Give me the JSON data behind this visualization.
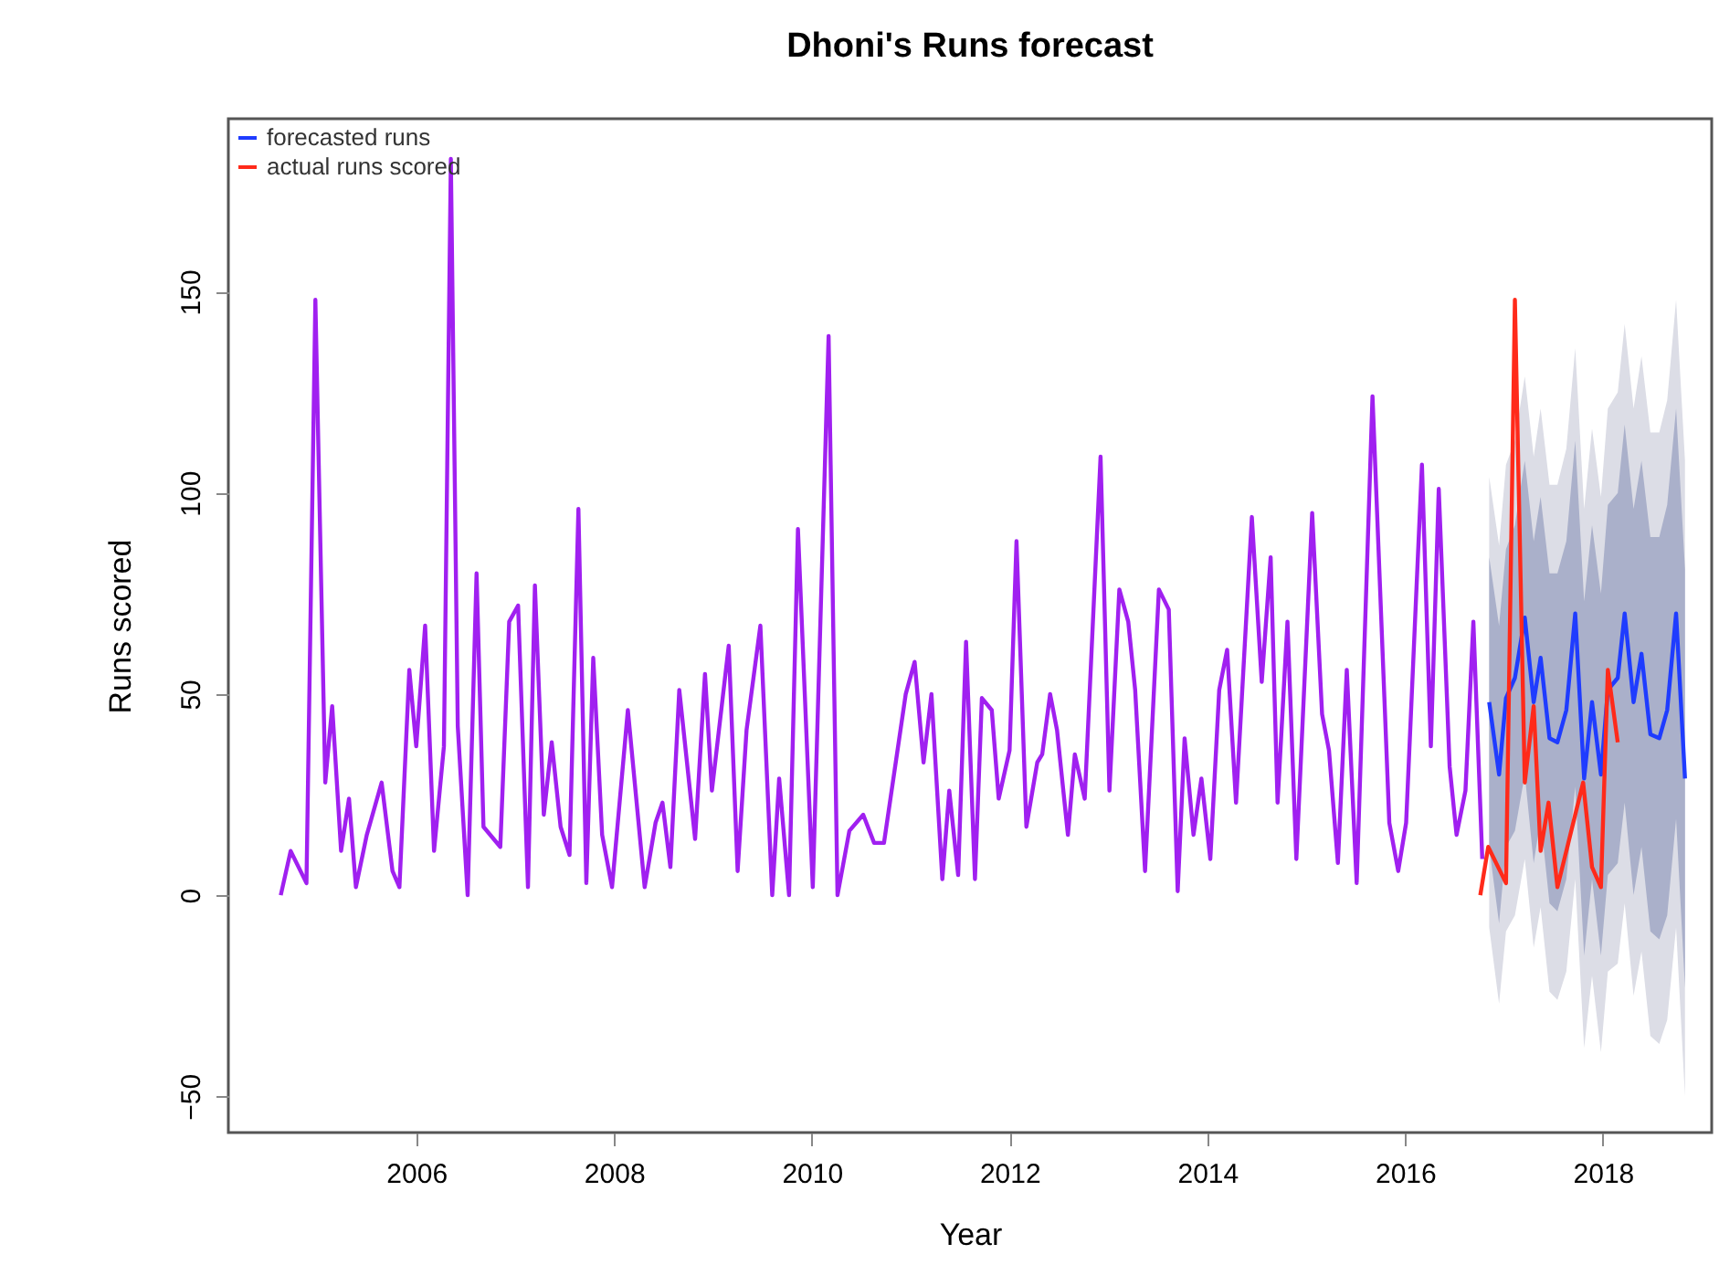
{
  "chart_data": {
    "type": "line",
    "title": "Dhoni's Runs forecast",
    "xlabel": "Year",
    "ylabel": "Runs scored",
    "xlim": [
      2004.1,
      2019.1
    ],
    "xticks": [
      2006,
      2008,
      2010,
      2012,
      2014,
      2016,
      2018
    ],
    "ylim": [
      -59,
      193
    ],
    "yticks": [
      -50,
      0,
      50,
      100,
      150
    ],
    "legend": "top left",
    "series": [
      {
        "color": "#dcdde6",
        "x": [
          2016.85,
          2016.95,
          2017.02,
          2017.11,
          2017.21,
          2017.3,
          2017.37,
          2017.46,
          2017.54,
          2017.63,
          2017.72,
          2017.81,
          2017.89,
          2017.98,
          2018.05,
          2018.15,
          2018.22,
          2018.31,
          2018.39,
          2018.48,
          2018.57,
          2018.65,
          2018.74,
          2018.83
        ],
        "values": [
          null,
          null,
          null,
          null,
          null,
          null,
          null,
          null,
          null,
          null,
          null,
          null,
          null,
          null,
          null,
          null,
          null,
          null,
          null,
          null,
          null,
          null,
          null,
          null
        ],
        "lower": [
          -8,
          -27,
          -9,
          -5,
          9,
          -13,
          -3,
          -24,
          -26,
          -19,
          4,
          -38,
          -20,
          -39,
          -19,
          -17,
          -2,
          -25,
          -14,
          -35,
          -37,
          -31,
          -8,
          -50
        ],
        "upper": [
          104,
          87,
          107,
          113,
          129,
          109,
          121,
          102,
          102,
          111,
          136,
          96,
          116,
          99,
          121,
          125,
          142,
          121,
          134,
          115,
          115,
          123,
          148,
          108
        ]
      },
      {
        "color": "#aab0ca",
        "x": [
          2016.85,
          2016.95,
          2017.02,
          2017.11,
          2017.21,
          2017.3,
          2017.37,
          2017.46,
          2017.54,
          2017.63,
          2017.72,
          2017.81,
          2017.89,
          2017.98,
          2018.05,
          2018.15,
          2018.22,
          2018.31,
          2018.39,
          2018.48,
          2018.57,
          2018.65,
          2018.74,
          2018.83
        ],
        "values": [
          null,
          null,
          null,
          null,
          null,
          null,
          null,
          null,
          null,
          null,
          null,
          null,
          null,
          null,
          null,
          null,
          null,
          null,
          null,
          null,
          null,
          null,
          null,
          null
        ],
        "lower": [
          12,
          -7,
          12,
          16,
          30,
          8,
          19,
          -2,
          -4,
          4,
          27,
          -15,
          4,
          -15,
          5,
          8,
          23,
          0,
          12,
          -9,
          -11,
          -5,
          19,
          -23
        ],
        "upper": [
          84,
          67,
          86,
          92,
          108,
          88,
          99,
          80,
          80,
          88,
          113,
          73,
          92,
          75,
          97,
          100,
          117,
          96,
          108,
          89,
          89,
          97,
          121,
          81
        ]
      },
      {
        "color": "#a020f0",
        "x": [
          2004.63,
          2004.73,
          2004.89,
          2004.98,
          2005.08,
          2005.15,
          2005.24,
          2005.32,
          2005.39,
          2005.5,
          2005.65,
          2005.76,
          2005.83,
          2005.93,
          2006.0,
          2006.09,
          2006.18,
          2006.28,
          2006.35,
          2006.42,
          2006.52,
          2006.61,
          2006.68,
          2006.85,
          2006.94,
          2007.03,
          2007.13,
          2007.2,
          2007.29,
          2007.37,
          2007.46,
          2007.55,
          2007.64,
          2007.72,
          2007.79,
          2007.88,
          2007.98,
          2008.14,
          2008.31,
          2008.42,
          2008.49,
          2008.57,
          2008.66,
          2008.82,
          2008.92,
          2008.99,
          2009.16,
          2009.25,
          2009.34,
          2009.48,
          2009.6,
          2009.67,
          2009.77,
          2009.86,
          2010.01,
          2010.17,
          2010.26,
          2010.38,
          2010.52,
          2010.63,
          2010.73,
          2010.95,
          2011.04,
          2011.13,
          2011.21,
          2011.32,
          2011.39,
          2011.48,
          2011.56,
          2011.65,
          2011.72,
          2011.82,
          2011.89,
          2012.0,
          2012.07,
          2012.17,
          2012.28,
          2012.33,
          2012.41,
          2012.48,
          2012.59,
          2012.66,
          2012.76,
          2012.92,
          2013.01,
          2013.11,
          2013.2,
          2013.27,
          2013.37,
          2013.51,
          2013.61,
          2013.7,
          2013.77,
          2013.86,
          2013.94,
          2014.03,
          2014.12,
          2014.2,
          2014.29,
          2014.45,
          2014.55,
          2014.64,
          2014.71,
          2014.81,
          2014.9,
          2015.06,
          2015.16,
          2015.23,
          2015.32,
          2015.41,
          2015.51,
          2015.67,
          2015.84,
          2015.93,
          2016.01,
          2016.17,
          2016.26,
          2016.34,
          2016.45,
          2016.52,
          2016.61,
          2016.69,
          2016.78
        ],
        "values": [
          0,
          11,
          3,
          148,
          28,
          47,
          11,
          24,
          2,
          15,
          28,
          6,
          2,
          56,
          37,
          67,
          11,
          37,
          183,
          42,
          0,
          80,
          17,
          12,
          68,
          72,
          2,
          77,
          20,
          38,
          17,
          10,
          96,
          3,
          59,
          15,
          2,
          46,
          2,
          18,
          23,
          7,
          51,
          14,
          55,
          26,
          62,
          6,
          41,
          67,
          0,
          29,
          0,
          91,
          2,
          139,
          0,
          16,
          20,
          13,
          13,
          50,
          58,
          33,
          50,
          4,
          26,
          5,
          63,
          4,
          49,
          46,
          24,
          36,
          88,
          17,
          33,
          35,
          50,
          41,
          15,
          35,
          24,
          109,
          26,
          76,
          68,
          51,
          6,
          76,
          71,
          1,
          39,
          15,
          29,
          9,
          51,
          61,
          23,
          94,
          53,
          84,
          23,
          68,
          9,
          95,
          45,
          36,
          8,
          56,
          3,
          124,
          18,
          6,
          18,
          107,
          37,
          101,
          32,
          15,
          26,
          68,
          9
        ]
      },
      {
        "name": "forecasted runs",
        "color": "#1f3cff",
        "x": [
          2016.85,
          2016.95,
          2017.02,
          2017.11,
          2017.21,
          2017.3,
          2017.37,
          2017.46,
          2017.54,
          2017.63,
          2017.72,
          2017.81,
          2017.89,
          2017.98,
          2018.05,
          2018.15,
          2018.22,
          2018.31,
          2018.39,
          2018.48,
          2018.57,
          2018.65,
          2018.74,
          2018.83
        ],
        "values": [
          48,
          30,
          49,
          54,
          69,
          48,
          59,
          39,
          38,
          46,
          70,
          29,
          48,
          30,
          51,
          54,
          70,
          48,
          60,
          40,
          39,
          46,
          70,
          29
        ]
      },
      {
        "name": "actual runs scored",
        "color": "#ff2a1a",
        "x": [
          2016.76,
          2016.84,
          2017.02,
          2017.11,
          2017.21,
          2017.3,
          2017.37,
          2017.45,
          2017.54,
          2017.63,
          2017.8,
          2017.89,
          2017.98,
          2018.05,
          2018.15
        ],
        "values": [
          0,
          12,
          3,
          148,
          28,
          47,
          11,
          23,
          2,
          11,
          28,
          7,
          2,
          56,
          38
        ]
      }
    ]
  }
}
